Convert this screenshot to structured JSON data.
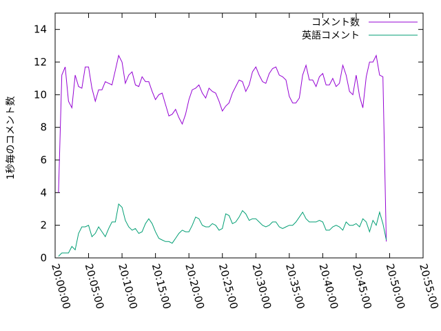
{
  "chart_data": {
    "type": "line",
    "title": "",
    "xlabel": "",
    "ylabel": "1秒毎のコメント数",
    "ylim": [
      0,
      15
    ],
    "yticks": [
      "0",
      "2",
      "4",
      "6",
      "8",
      "10",
      "12",
      "14"
    ],
    "xlim": [
      "20:00:00",
      "20:55:00"
    ],
    "xticks": [
      "20:00:00",
      "20:05:00",
      "20:10:00",
      "20:15:00",
      "20:20:00",
      "20:25:00",
      "20:30:00",
      "20:35:00",
      "20:40:00",
      "20:45:00",
      "20:50:00",
      "20:55:00"
    ],
    "grid": false,
    "legend": "top-right",
    "series": [
      {
        "name": "コメント数",
        "color": "#9400d3",
        "points": [
          [
            "20:00:30",
            4.0
          ],
          [
            "20:01:00",
            11.2
          ],
          [
            "20:01:30",
            11.7
          ],
          [
            "20:02:00",
            9.6
          ],
          [
            "20:02:30",
            9.2
          ],
          [
            "20:03:00",
            11.2
          ],
          [
            "20:03:30",
            10.5
          ],
          [
            "20:04:00",
            10.4
          ],
          [
            "20:04:30",
            11.7
          ],
          [
            "20:05:00",
            11.7
          ],
          [
            "20:05:30",
            10.4
          ],
          [
            "20:06:00",
            9.6
          ],
          [
            "20:06:30",
            10.3
          ],
          [
            "20:07:00",
            10.3
          ],
          [
            "20:07:30",
            10.8
          ],
          [
            "20:08:00",
            10.7
          ],
          [
            "20:08:30",
            10.6
          ],
          [
            "20:09:00",
            11.5
          ],
          [
            "20:09:30",
            12.4
          ],
          [
            "20:10:00",
            12.0
          ],
          [
            "20:10:30",
            10.7
          ],
          [
            "20:11:00",
            11.2
          ],
          [
            "20:11:30",
            11.4
          ],
          [
            "20:12:00",
            10.6
          ],
          [
            "20:12:30",
            10.5
          ],
          [
            "20:13:00",
            11.1
          ],
          [
            "20:13:30",
            10.8
          ],
          [
            "20:14:00",
            10.8
          ],
          [
            "20:14:30",
            10.2
          ],
          [
            "20:15:00",
            9.7
          ],
          [
            "20:15:30",
            10.0
          ],
          [
            "20:16:00",
            10.1
          ],
          [
            "20:16:30",
            9.4
          ],
          [
            "20:17:00",
            8.7
          ],
          [
            "20:17:30",
            8.8
          ],
          [
            "20:18:00",
            9.1
          ],
          [
            "20:18:30",
            8.6
          ],
          [
            "20:19:00",
            8.2
          ],
          [
            "20:19:30",
            8.8
          ],
          [
            "20:20:00",
            9.7
          ],
          [
            "20:20:30",
            10.3
          ],
          [
            "20:21:00",
            10.4
          ],
          [
            "20:21:30",
            10.6
          ],
          [
            "20:22:00",
            10.1
          ],
          [
            "20:22:30",
            9.8
          ],
          [
            "20:23:00",
            10.4
          ],
          [
            "20:23:30",
            10.2
          ],
          [
            "20:24:00",
            10.1
          ],
          [
            "20:24:30",
            9.6
          ],
          [
            "20:25:00",
            9.0
          ],
          [
            "20:25:30",
            9.3
          ],
          [
            "20:26:00",
            9.5
          ],
          [
            "20:26:30",
            10.1
          ],
          [
            "20:27:00",
            10.5
          ],
          [
            "20:27:30",
            10.9
          ],
          [
            "20:28:00",
            10.8
          ],
          [
            "20:28:30",
            10.2
          ],
          [
            "20:29:00",
            10.6
          ],
          [
            "20:29:30",
            11.4
          ],
          [
            "20:30:00",
            11.7
          ],
          [
            "20:30:30",
            11.2
          ],
          [
            "20:31:00",
            10.8
          ],
          [
            "20:31:30",
            10.7
          ],
          [
            "20:32:00",
            11.3
          ],
          [
            "20:32:30",
            11.6
          ],
          [
            "20:33:00",
            11.7
          ],
          [
            "20:33:30",
            11.2
          ],
          [
            "20:34:00",
            11.1
          ],
          [
            "20:34:30",
            10.9
          ],
          [
            "20:35:00",
            9.9
          ],
          [
            "20:35:30",
            9.5
          ],
          [
            "20:36:00",
            9.5
          ],
          [
            "20:36:30",
            9.8
          ],
          [
            "20:37:00",
            11.2
          ],
          [
            "20:37:30",
            11.8
          ],
          [
            "20:38:00",
            10.9
          ],
          [
            "20:38:30",
            10.9
          ],
          [
            "20:39:00",
            10.5
          ],
          [
            "20:39:30",
            11.1
          ],
          [
            "20:40:00",
            11.3
          ],
          [
            "20:40:30",
            10.6
          ],
          [
            "20:41:00",
            10.6
          ],
          [
            "20:41:30",
            11.0
          ],
          [
            "20:42:00",
            10.5
          ],
          [
            "20:42:30",
            10.7
          ],
          [
            "20:43:00",
            11.8
          ],
          [
            "20:43:30",
            11.2
          ],
          [
            "20:44:00",
            10.2
          ],
          [
            "20:44:30",
            10.0
          ],
          [
            "20:45:00",
            11.2
          ],
          [
            "20:45:30",
            9.9
          ],
          [
            "20:46:00",
            9.2
          ],
          [
            "20:46:30",
            11.1
          ],
          [
            "20:47:00",
            12.0
          ],
          [
            "20:47:30",
            12.0
          ],
          [
            "20:48:00",
            12.4
          ],
          [
            "20:48:30",
            11.2
          ],
          [
            "20:49:00",
            11.1
          ],
          [
            "20:49:30",
            1.0
          ]
        ]
      },
      {
        "name": "英語コメント",
        "color": "#009e73",
        "points": [
          [
            "20:00:30",
            0.1
          ],
          [
            "20:01:00",
            0.3
          ],
          [
            "20:01:30",
            0.3
          ],
          [
            "20:02:00",
            0.3
          ],
          [
            "20:02:30",
            0.7
          ],
          [
            "20:03:00",
            0.5
          ],
          [
            "20:03:30",
            1.5
          ],
          [
            "20:04:00",
            1.9
          ],
          [
            "20:04:30",
            1.9
          ],
          [
            "20:05:00",
            2.0
          ],
          [
            "20:05:30",
            1.3
          ],
          [
            "20:06:00",
            1.5
          ],
          [
            "20:06:30",
            1.9
          ],
          [
            "20:07:00",
            1.6
          ],
          [
            "20:07:30",
            1.3
          ],
          [
            "20:08:00",
            1.8
          ],
          [
            "20:08:30",
            2.2
          ],
          [
            "20:09:00",
            2.2
          ],
          [
            "20:09:30",
            3.3
          ],
          [
            "20:10:00",
            3.1
          ],
          [
            "20:10:30",
            2.3
          ],
          [
            "20:11:00",
            1.9
          ],
          [
            "20:11:30",
            1.7
          ],
          [
            "20:12:00",
            1.8
          ],
          [
            "20:12:30",
            1.5
          ],
          [
            "20:13:00",
            1.6
          ],
          [
            "20:13:30",
            2.1
          ],
          [
            "20:14:00",
            2.4
          ],
          [
            "20:14:30",
            2.1
          ],
          [
            "20:15:00",
            1.6
          ],
          [
            "20:15:30",
            1.2
          ],
          [
            "20:16:00",
            1.1
          ],
          [
            "20:16:30",
            1.0
          ],
          [
            "20:17:00",
            1.0
          ],
          [
            "20:17:30",
            0.9
          ],
          [
            "20:18:00",
            1.2
          ],
          [
            "20:18:30",
            1.5
          ],
          [
            "20:19:00",
            1.7
          ],
          [
            "20:19:30",
            1.6
          ],
          [
            "20:20:00",
            1.6
          ],
          [
            "20:20:30",
            2.0
          ],
          [
            "20:21:00",
            2.5
          ],
          [
            "20:21:30",
            2.4
          ],
          [
            "20:22:00",
            2.0
          ],
          [
            "20:22:30",
            1.9
          ],
          [
            "20:23:00",
            1.9
          ],
          [
            "20:23:30",
            2.1
          ],
          [
            "20:24:00",
            2.0
          ],
          [
            "20:24:30",
            1.7
          ],
          [
            "20:25:00",
            1.8
          ],
          [
            "20:25:30",
            2.7
          ],
          [
            "20:26:00",
            2.6
          ],
          [
            "20:26:30",
            2.1
          ],
          [
            "20:27:00",
            2.2
          ],
          [
            "20:27:30",
            2.5
          ],
          [
            "20:28:00",
            2.9
          ],
          [
            "20:28:30",
            2.7
          ],
          [
            "20:29:00",
            2.3
          ],
          [
            "20:29:30",
            2.4
          ],
          [
            "20:30:00",
            2.4
          ],
          [
            "20:30:30",
            2.2
          ],
          [
            "20:31:00",
            2.0
          ],
          [
            "20:31:30",
            1.9
          ],
          [
            "20:32:00",
            2.0
          ],
          [
            "20:32:30",
            2.2
          ],
          [
            "20:33:00",
            2.2
          ],
          [
            "20:33:30",
            1.9
          ],
          [
            "20:34:00",
            1.8
          ],
          [
            "20:34:30",
            1.9
          ],
          [
            "20:35:00",
            2.0
          ],
          [
            "20:35:30",
            2.0
          ],
          [
            "20:36:00",
            2.2
          ],
          [
            "20:36:30",
            2.5
          ],
          [
            "20:37:00",
            2.8
          ],
          [
            "20:37:30",
            2.4
          ],
          [
            "20:38:00",
            2.2
          ],
          [
            "20:38:30",
            2.2
          ],
          [
            "20:39:00",
            2.2
          ],
          [
            "20:39:30",
            2.3
          ],
          [
            "20:40:00",
            2.2
          ],
          [
            "20:40:30",
            1.7
          ],
          [
            "20:41:00",
            1.7
          ],
          [
            "20:41:30",
            1.9
          ],
          [
            "20:42:00",
            2.0
          ],
          [
            "20:42:30",
            1.9
          ],
          [
            "20:43:00",
            1.7
          ],
          [
            "20:43:30",
            2.2
          ],
          [
            "20:44:00",
            2.0
          ],
          [
            "20:44:30",
            2.0
          ],
          [
            "20:45:00",
            2.1
          ],
          [
            "20:45:30",
            1.9
          ],
          [
            "20:46:00",
            2.4
          ],
          [
            "20:46:30",
            2.2
          ],
          [
            "20:47:00",
            1.6
          ],
          [
            "20:47:30",
            2.3
          ],
          [
            "20:48:00",
            2.0
          ],
          [
            "20:48:30",
            2.8
          ],
          [
            "20:49:00",
            2.1
          ],
          [
            "20:49:30",
            1.1
          ]
        ]
      }
    ]
  }
}
